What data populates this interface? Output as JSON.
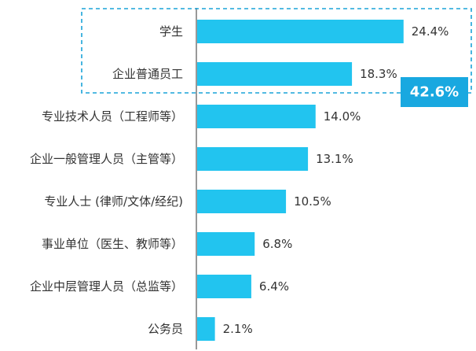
{
  "chart_data": {
    "type": "bar",
    "orientation": "horizontal",
    "categories": [
      "学生",
      "企业普通员工",
      "专业技术人员（工程师等）",
      "企业一般管理人员（主管等）",
      "专业人士 (律师/文体/经纪)",
      "事业单位（医生、教师等）",
      "企业中层管理人员（总监等）",
      "公务员"
    ],
    "values": [
      24.4,
      18.3,
      14.0,
      13.1,
      10.5,
      6.8,
      6.4,
      2.1
    ],
    "value_labels": [
      "24.4%",
      "18.3%",
      "14.0%",
      "13.1%",
      "10.5%",
      "6.8%",
      "6.4%",
      "2.1%"
    ],
    "title": "",
    "xlabel": "",
    "ylabel": "",
    "xlim": [
      0,
      26
    ],
    "grid": false,
    "bar_color": "#22c4ef",
    "highlight": {
      "categories": [
        "学生",
        "企业普通员工"
      ],
      "label": "42.6%",
      "border_color": "#1aa3d9",
      "badge_color": "#19a8e0"
    }
  }
}
